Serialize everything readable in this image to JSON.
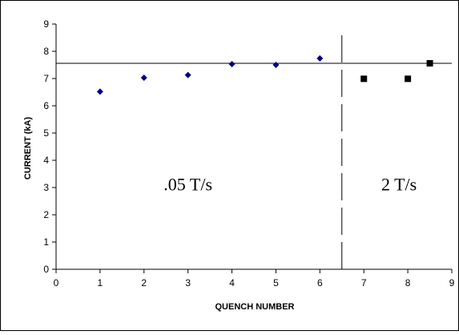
{
  "chart_data": {
    "type": "scatter",
    "xlabel": "QUENCH NUMBER",
    "ylabel": "CURRENT (kA)",
    "xlim": [
      0,
      9
    ],
    "ylim": [
      0,
      9
    ],
    "x_ticks": [
      0,
      1,
      2,
      3,
      4,
      5,
      6,
      7,
      8,
      9
    ],
    "y_ticks": [
      0,
      1,
      2,
      3,
      4,
      5,
      6,
      7,
      8,
      9
    ],
    "grid": false,
    "legend": "none",
    "series": [
      {
        "marker": "diamond",
        "color": "#000080",
        "x": [
          1,
          2,
          3,
          4,
          5,
          6
        ],
        "y": [
          6.52,
          7.03,
          7.13,
          7.53,
          7.5,
          7.74
        ]
      },
      {
        "marker": "square",
        "color": "#000000",
        "x": [
          7,
          8,
          8.5
        ],
        "y": [
          6.99,
          6.99,
          7.56
        ]
      }
    ],
    "reference_lines": [
      {
        "orientation": "horizontal",
        "value": 7.56,
        "style": "solid"
      },
      {
        "orientation": "vertical",
        "value": 6.5,
        "style": "dashed"
      }
    ],
    "annotations": [
      {
        "text": ".05 T/s",
        "x": 3,
        "y": 2.9
      },
      {
        "text": "2 T/s",
        "x": 7.8,
        "y": 2.9
      }
    ]
  }
}
